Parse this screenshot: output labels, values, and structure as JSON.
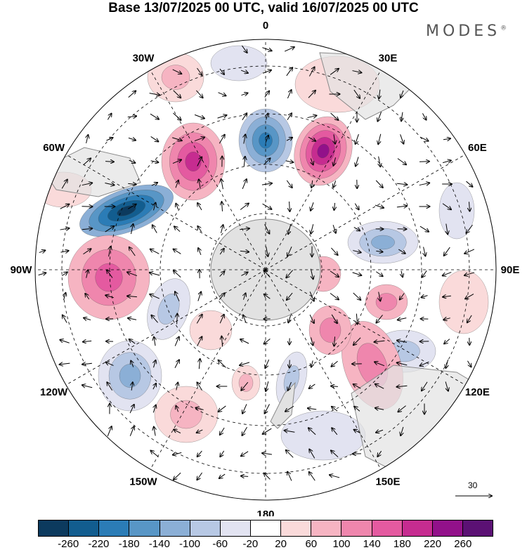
{
  "title": "Base 13/07/2025 00 UTC, valid 16/07/2025 00 UTC",
  "brand": "MODES",
  "brand_mark": "®",
  "projection": "south-polar-stereographic",
  "longitude_labels": [
    {
      "text": "0"
    },
    {
      "text": "30E"
    },
    {
      "text": "60E"
    },
    {
      "text": "90E"
    },
    {
      "text": "120E"
    },
    {
      "text": "150E"
    },
    {
      "text": "180"
    },
    {
      "text": "150W"
    },
    {
      "text": "120W"
    },
    {
      "text": "90W"
    },
    {
      "text": "60W"
    },
    {
      "text": "30W"
    }
  ],
  "colorbar": {
    "ticks": [
      "-260",
      "-220",
      "-180",
      "-140",
      "-100",
      "-60",
      "-20",
      "20",
      "60",
      "100",
      "140",
      "180",
      "220",
      "260"
    ],
    "colors": [
      "#0c3a5e",
      "#125d8f",
      "#2b7cb6",
      "#5896c6",
      "#8bafd6",
      "#b7c8e4",
      "#e2e3f1",
      "#ffffff",
      "#fadada",
      "#f6b4c2",
      "#ef86ad",
      "#e45aa0",
      "#c62c90",
      "#92118a",
      "#5b1174"
    ]
  },
  "reference_vector": {
    "value": "30"
  },
  "colors": {
    "land": "#e2e2e2",
    "coast": "#8a8a8a",
    "grid": "#000000"
  }
}
